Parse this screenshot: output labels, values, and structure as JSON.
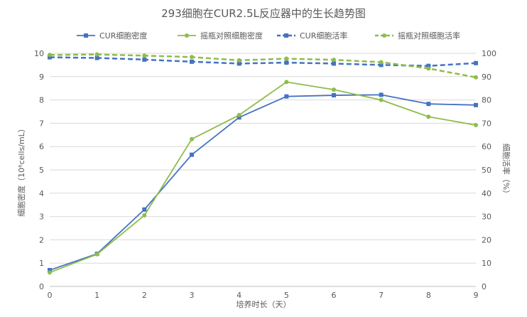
{
  "title": "293细胞在CUR2.5L反应器中的生长趋势图",
  "legend": [
    {
      "label": "CUR细胞密度",
      "color": "#4472c4",
      "dashed": false
    },
    {
      "label": "摇瓶对照细胞密度",
      "color": "#8fbc4a",
      "dashed": false
    },
    {
      "label": "CUR细胞活率",
      "color": "#4472c4",
      "dashed": true
    },
    {
      "label": "摇瓶对照细胞活率",
      "color": "#8fbc4a",
      "dashed": true
    }
  ],
  "chart_data": {
    "type": "line",
    "title": "293细胞在CUR2.5L反应器中的生长趋势图",
    "xlabel": "培养时长（天）",
    "ylabel": "细胞密度（10⁶cells/mL）",
    "y2label": "细胞活率（%）",
    "categories": [
      0,
      1,
      2,
      3,
      4,
      5,
      6,
      7,
      8,
      9
    ],
    "ylim": [
      0,
      10
    ],
    "y2lim": [
      0,
      100
    ],
    "yticks": [
      0,
      1,
      2,
      3,
      4,
      5,
      6,
      7,
      8,
      9,
      10
    ],
    "y2ticks": [
      0,
      10,
      20,
      30,
      40,
      50,
      60,
      70,
      80,
      90,
      100
    ],
    "grid": true,
    "legend_position": "top",
    "series": [
      {
        "name": "CUR细胞密度",
        "axis": "left",
        "color": "#4472c4",
        "dashed": false,
        "marker": "square",
        "values": [
          0.7,
          1.4,
          3.3,
          5.65,
          7.25,
          8.15,
          8.2,
          8.22,
          7.83,
          7.78
        ]
      },
      {
        "name": "摇瓶对照细胞密度",
        "axis": "left",
        "color": "#8fbc4a",
        "dashed": false,
        "marker": "circle",
        "values": [
          0.6,
          1.38,
          3.05,
          6.32,
          7.35,
          8.77,
          8.44,
          8.0,
          7.28,
          6.92
        ]
      },
      {
        "name": "CUR细胞活率",
        "axis": "right",
        "color": "#4472c4",
        "dashed": true,
        "marker": "square",
        "values": [
          98.3,
          98.0,
          97.3,
          96.4,
          95.6,
          96.0,
          95.6,
          95.0,
          94.6,
          95.8
        ]
      },
      {
        "name": "摇瓶对照细胞活率",
        "axis": "right",
        "color": "#8fbc4a",
        "dashed": true,
        "marker": "circle",
        "values": [
          99.3,
          99.5,
          99.0,
          98.4,
          97.0,
          97.7,
          97.2,
          96.2,
          93.5,
          89.7
        ]
      }
    ]
  }
}
